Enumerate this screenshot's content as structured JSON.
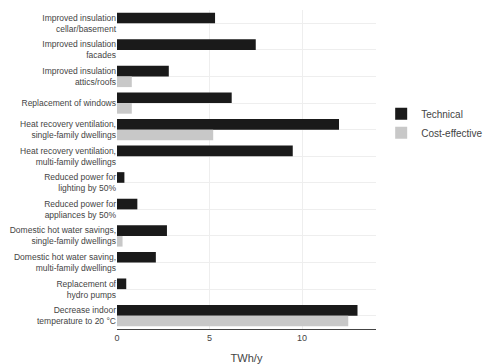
{
  "chart_data": {
    "type": "bar",
    "orientation": "horizontal",
    "stacked": false,
    "categories": [
      "Improved insulation\ncellar/basement",
      "Improved insulation\nfacades",
      "Improved insulation\nattics/roofs",
      "Replacement of windows",
      "Heat recovery ventilation,\nsingle-family dwellings",
      "Heat recovery ventilation,\nmulti-family dwellings",
      "Reduced power for\nlighting by 50%",
      "Reduced power for\nappliances by 50%",
      "Domestic hot water savings,\nsingle-family dwellings",
      "Domestic hot water saving,\nmulti-family dwellings",
      "Replacement of\nhydro pumps",
      "Decrease indoor\ntemperature to 20 °C"
    ],
    "series": [
      {
        "name": "Technical",
        "color": "#1a1a1a",
        "values": [
          5.3,
          7.5,
          2.8,
          6.2,
          12.0,
          9.5,
          0.4,
          1.1,
          2.7,
          2.1,
          0.5,
          13.0
        ]
      },
      {
        "name": "Cost-effective",
        "color": "#c8c8c8",
        "values": [
          0.0,
          0.0,
          0.8,
          0.8,
          5.2,
          0.0,
          0.0,
          0.0,
          0.3,
          0.0,
          0.0,
          12.5
        ]
      }
    ],
    "xlabel": "TWh/y",
    "xlim": [
      0,
      14
    ],
    "xticks": [
      0,
      5,
      10
    ],
    "grid": true,
    "legend": "right"
  }
}
